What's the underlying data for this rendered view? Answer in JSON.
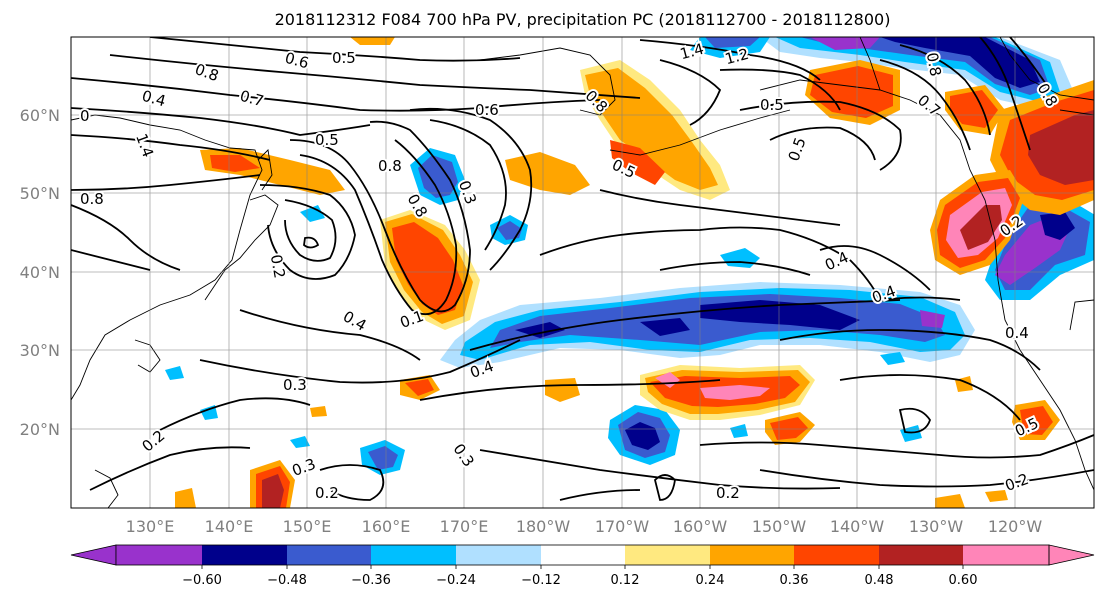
{
  "title": "2018112312 F084 700 hPa PV, precipitation PC (2018112700 - 2018112800)",
  "lat_labels": [
    "60°N",
    "50°N",
    "40°N",
    "30°N",
    "20°N"
  ],
  "lon_labels": [
    "130°E",
    "140°E",
    "150°E",
    "160°E",
    "170°E",
    "180°W",
    "170°W",
    "160°W",
    "150°W",
    "140°W",
    "130°W",
    "120°W"
  ],
  "colorbar": {
    "ticks": [
      "−0.60",
      "−0.48",
      "−0.36",
      "−0.24",
      "−0.12",
      "0.12",
      "0.24",
      "0.36",
      "0.48",
      "0.60"
    ],
    "colors": [
      "#9932cc",
      "#00008b",
      "#3a5bcf",
      "#00bfff",
      "#b0e0ff",
      "#ffffff",
      "#ffe980",
      "#ffa500",
      "#ff4500",
      "#b22222",
      "#ff85b8"
    ]
  },
  "contour_labels": [
    "0.5",
    "0.6",
    "0.8",
    "0.7",
    "0.4",
    "0",
    "1.4",
    "0.5",
    "0.8",
    "0.8",
    "0.6",
    "0.5",
    "0.8",
    "0.3",
    "0.8",
    "0.2",
    "0.4",
    "0.1",
    "0.4",
    "0.3",
    "0.2",
    "0.3",
    "0.2",
    "0.3",
    "0.2",
    "1.4",
    "1.2",
    "0.8",
    "0.5",
    "0.5",
    "0.7",
    "0.8",
    "0.4",
    "0.4",
    "0.5",
    "0.2",
    "0.2",
    "0.4"
  ]
}
